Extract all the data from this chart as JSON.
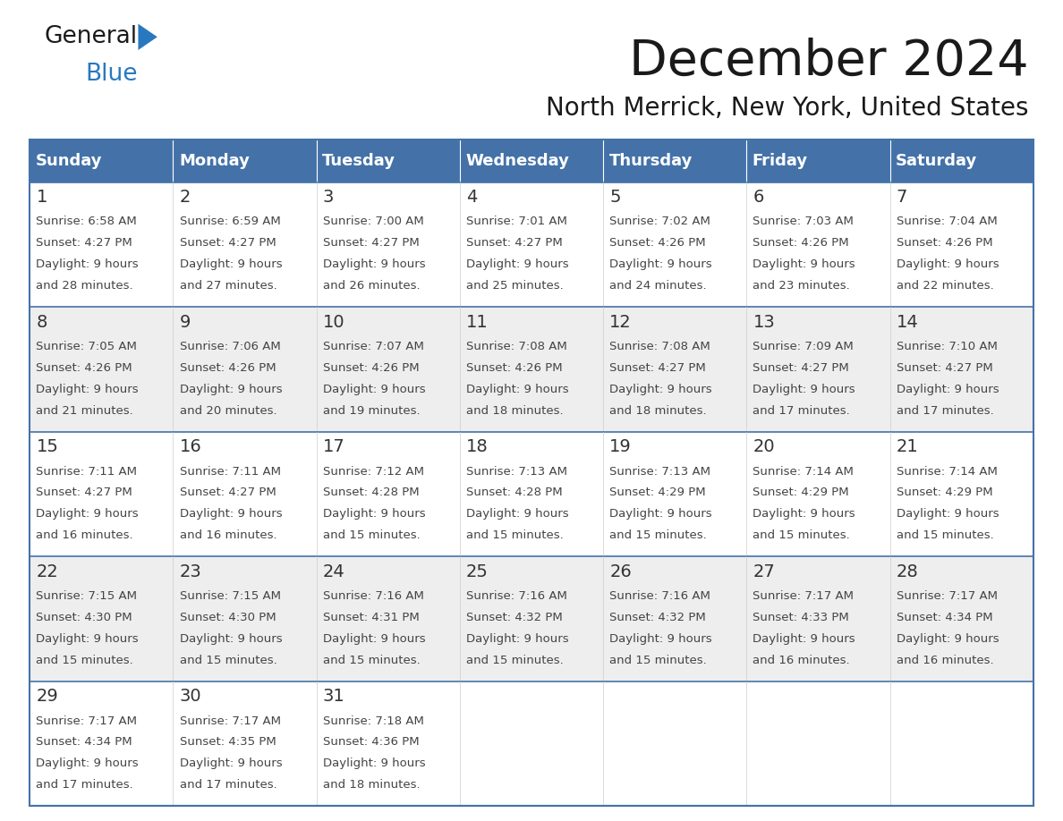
{
  "title": "December 2024",
  "subtitle": "North Merrick, New York, United States",
  "header_color": "#4472a8",
  "header_text_color": "#ffffff",
  "cell_bg_white": "#ffffff",
  "cell_bg_gray": "#eeeeee",
  "border_color": "#4472a8",
  "row_divider_color": "#4472a8",
  "day_headers": [
    "Sunday",
    "Monday",
    "Tuesday",
    "Wednesday",
    "Thursday",
    "Friday",
    "Saturday"
  ],
  "logo_text1": "General",
  "logo_text2": "Blue",
  "logo_color1": "#1a1a1a",
  "logo_color2": "#2878c0",
  "logo_triangle_color": "#2878c0",
  "title_color": "#1a1a1a",
  "day_num_color": "#333333",
  "content_color": "#444444",
  "weeks": [
    [
      {
        "day": 1,
        "sunrise": "6:58 AM",
        "sunset": "4:27 PM",
        "daylight_mins": "28 minutes."
      },
      {
        "day": 2,
        "sunrise": "6:59 AM",
        "sunset": "4:27 PM",
        "daylight_mins": "27 minutes."
      },
      {
        "day": 3,
        "sunrise": "7:00 AM",
        "sunset": "4:27 PM",
        "daylight_mins": "26 minutes."
      },
      {
        "day": 4,
        "sunrise": "7:01 AM",
        "sunset": "4:27 PM",
        "daylight_mins": "25 minutes."
      },
      {
        "day": 5,
        "sunrise": "7:02 AM",
        "sunset": "4:26 PM",
        "daylight_mins": "24 minutes."
      },
      {
        "day": 6,
        "sunrise": "7:03 AM",
        "sunset": "4:26 PM",
        "daylight_mins": "23 minutes."
      },
      {
        "day": 7,
        "sunrise": "7:04 AM",
        "sunset": "4:26 PM",
        "daylight_mins": "22 minutes."
      }
    ],
    [
      {
        "day": 8,
        "sunrise": "7:05 AM",
        "sunset": "4:26 PM",
        "daylight_mins": "21 minutes."
      },
      {
        "day": 9,
        "sunrise": "7:06 AM",
        "sunset": "4:26 PM",
        "daylight_mins": "20 minutes."
      },
      {
        "day": 10,
        "sunrise": "7:07 AM",
        "sunset": "4:26 PM",
        "daylight_mins": "19 minutes."
      },
      {
        "day": 11,
        "sunrise": "7:08 AM",
        "sunset": "4:26 PM",
        "daylight_mins": "18 minutes."
      },
      {
        "day": 12,
        "sunrise": "7:08 AM",
        "sunset": "4:27 PM",
        "daylight_mins": "18 minutes."
      },
      {
        "day": 13,
        "sunrise": "7:09 AM",
        "sunset": "4:27 PM",
        "daylight_mins": "17 minutes."
      },
      {
        "day": 14,
        "sunrise": "7:10 AM",
        "sunset": "4:27 PM",
        "daylight_mins": "17 minutes."
      }
    ],
    [
      {
        "day": 15,
        "sunrise": "7:11 AM",
        "sunset": "4:27 PM",
        "daylight_mins": "16 minutes."
      },
      {
        "day": 16,
        "sunrise": "7:11 AM",
        "sunset": "4:27 PM",
        "daylight_mins": "16 minutes."
      },
      {
        "day": 17,
        "sunrise": "7:12 AM",
        "sunset": "4:28 PM",
        "daylight_mins": "15 minutes."
      },
      {
        "day": 18,
        "sunrise": "7:13 AM",
        "sunset": "4:28 PM",
        "daylight_mins": "15 minutes."
      },
      {
        "day": 19,
        "sunrise": "7:13 AM",
        "sunset": "4:29 PM",
        "daylight_mins": "15 minutes."
      },
      {
        "day": 20,
        "sunrise": "7:14 AM",
        "sunset": "4:29 PM",
        "daylight_mins": "15 minutes."
      },
      {
        "day": 21,
        "sunrise": "7:14 AM",
        "sunset": "4:29 PM",
        "daylight_mins": "15 minutes."
      }
    ],
    [
      {
        "day": 22,
        "sunrise": "7:15 AM",
        "sunset": "4:30 PM",
        "daylight_mins": "15 minutes."
      },
      {
        "day": 23,
        "sunrise": "7:15 AM",
        "sunset": "4:30 PM",
        "daylight_mins": "15 minutes."
      },
      {
        "day": 24,
        "sunrise": "7:16 AM",
        "sunset": "4:31 PM",
        "daylight_mins": "15 minutes."
      },
      {
        "day": 25,
        "sunrise": "7:16 AM",
        "sunset": "4:32 PM",
        "daylight_mins": "15 minutes."
      },
      {
        "day": 26,
        "sunrise": "7:16 AM",
        "sunset": "4:32 PM",
        "daylight_mins": "15 minutes."
      },
      {
        "day": 27,
        "sunrise": "7:17 AM",
        "sunset": "4:33 PM",
        "daylight_mins": "16 minutes."
      },
      {
        "day": 28,
        "sunrise": "7:17 AM",
        "sunset": "4:34 PM",
        "daylight_mins": "16 minutes."
      }
    ],
    [
      {
        "day": 29,
        "sunrise": "7:17 AM",
        "sunset": "4:34 PM",
        "daylight_mins": "17 minutes."
      },
      {
        "day": 30,
        "sunrise": "7:17 AM",
        "sunset": "4:35 PM",
        "daylight_mins": "17 minutes."
      },
      {
        "day": 31,
        "sunrise": "7:18 AM",
        "sunset": "4:36 PM",
        "daylight_mins": "18 minutes."
      },
      null,
      null,
      null,
      null
    ]
  ]
}
